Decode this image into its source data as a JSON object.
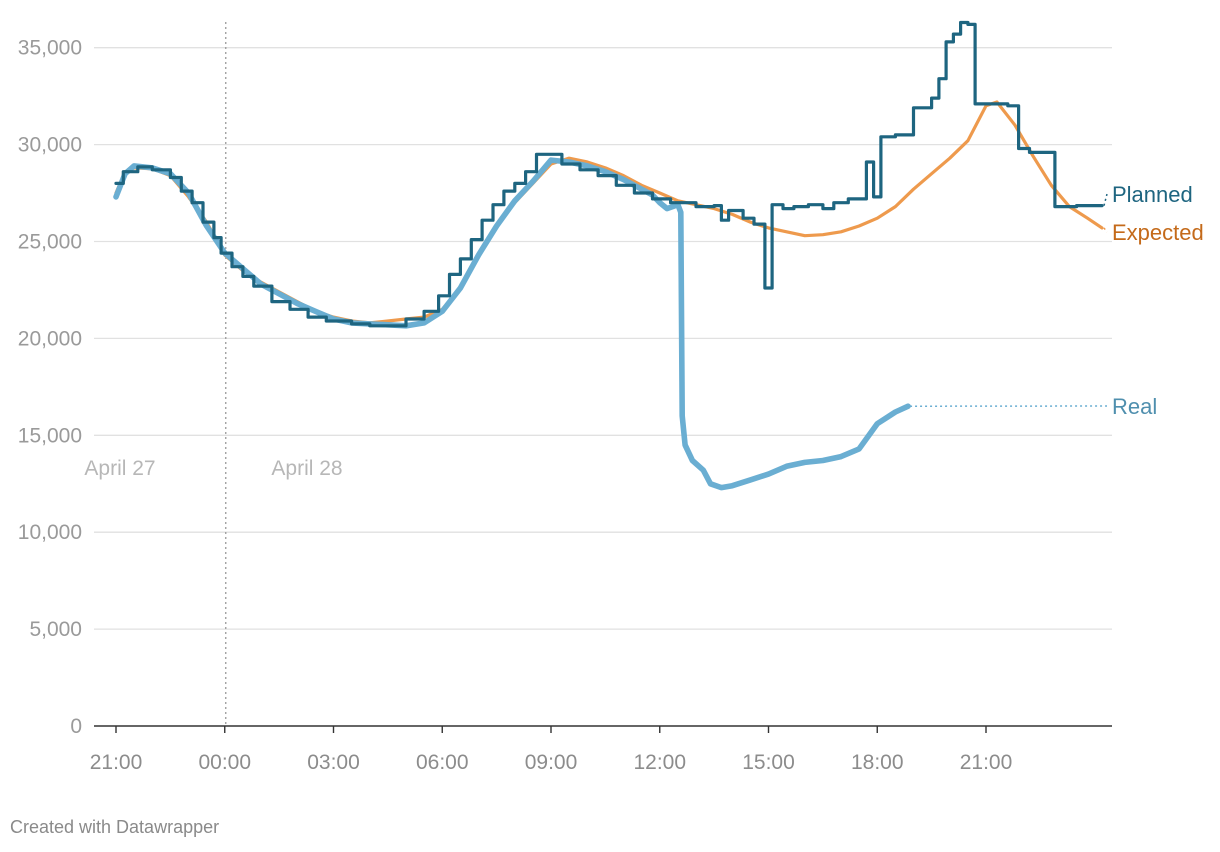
{
  "credit": "Created with Datawrapper",
  "chart_data": {
    "type": "line",
    "title": "",
    "xlabel": "",
    "ylabel": "",
    "x_start": "2025-04-27 21:00",
    "x_range": [
      "2025-04-27 20:45",
      "2025-04-29 01:00"
    ],
    "ylim": [
      0,
      36000
    ],
    "y_ticks": [
      {
        "value": 0,
        "label": "0"
      },
      {
        "value": 5000,
        "label": "5,000"
      },
      {
        "value": 10000,
        "label": "10,000"
      },
      {
        "value": 15000,
        "label": "15,000"
      },
      {
        "value": 20000,
        "label": "20,000"
      },
      {
        "value": 25000,
        "label": "25,000"
      },
      {
        "value": 30000,
        "label": "30,000"
      },
      {
        "value": 35000,
        "label": "35,000"
      }
    ],
    "x_ticks": [
      {
        "hour": 0,
        "label": "21:00"
      },
      {
        "hour": 3,
        "label": "00:00"
      },
      {
        "hour": 6,
        "label": "03:00"
      },
      {
        "hour": 9,
        "label": "06:00"
      },
      {
        "hour": 12,
        "label": "09:00"
      },
      {
        "hour": 15,
        "label": "12:00"
      },
      {
        "hour": 18,
        "label": "15:00"
      },
      {
        "hour": 21,
        "label": "18:00"
      },
      {
        "hour": 24,
        "label": "21:00"
      }
    ],
    "day_labels": [
      {
        "label": "April 27"
      },
      {
        "label": "April 28"
      }
    ],
    "midnight_marker": {
      "hour": 3
    },
    "grid": true,
    "series": [
      {
        "name": "Expected",
        "color": "#ee9a4d",
        "points": [
          [
            0,
            27500
          ],
          [
            0.25,
            28600
          ],
          [
            0.5,
            28800
          ],
          [
            1,
            28750
          ],
          [
            1.5,
            28400
          ],
          [
            2,
            27300
          ],
          [
            2.5,
            26000
          ],
          [
            3,
            24300
          ],
          [
            3.5,
            23500
          ],
          [
            4,
            22900
          ],
          [
            4.5,
            22400
          ],
          [
            5,
            21900
          ],
          [
            5.5,
            21400
          ],
          [
            6,
            21100
          ],
          [
            6.5,
            20900
          ],
          [
            7,
            20800
          ],
          [
            7.5,
            20900
          ],
          [
            8,
            21000
          ],
          [
            8.5,
            21100
          ],
          [
            9,
            21500
          ],
          [
            9.5,
            22600
          ],
          [
            10,
            24200
          ],
          [
            10.5,
            25800
          ],
          [
            11,
            27000
          ],
          [
            11.5,
            28000
          ],
          [
            12,
            29000
          ],
          [
            12.5,
            29300
          ],
          [
            13,
            29100
          ],
          [
            13.5,
            28800
          ],
          [
            14,
            28400
          ],
          [
            14.5,
            27900
          ],
          [
            15,
            27500
          ],
          [
            15.5,
            27100
          ],
          [
            16,
            26900
          ],
          [
            16.5,
            26700
          ],
          [
            17,
            26400
          ],
          [
            17.5,
            26000
          ],
          [
            18,
            25700
          ],
          [
            18.5,
            25500
          ],
          [
            19,
            25300
          ],
          [
            19.5,
            25350
          ],
          [
            20,
            25500
          ],
          [
            20.5,
            25800
          ],
          [
            21,
            26200
          ],
          [
            21.5,
            26800
          ],
          [
            22,
            27700
          ],
          [
            22.5,
            28500
          ],
          [
            23,
            29300
          ],
          [
            23.5,
            30200
          ],
          [
            24,
            32000
          ],
          [
            24.3,
            32200
          ],
          [
            24.8,
            31000
          ],
          [
            25.3,
            29400
          ],
          [
            25.8,
            27900
          ],
          [
            26.3,
            26800
          ],
          [
            26.8,
            26200
          ],
          [
            27.2,
            25700
          ]
        ]
      },
      {
        "name": "Real",
        "color": "#6aaed2",
        "points": [
          [
            0,
            27300
          ],
          [
            0.25,
            28500
          ],
          [
            0.5,
            28900
          ],
          [
            1,
            28800
          ],
          [
            1.5,
            28500
          ],
          [
            2,
            27500
          ],
          [
            2.5,
            25800
          ],
          [
            3,
            24400
          ],
          [
            3.5,
            23600
          ],
          [
            4,
            22800
          ],
          [
            4.5,
            22300
          ],
          [
            5,
            21800
          ],
          [
            5.5,
            21400
          ],
          [
            6,
            21000
          ],
          [
            6.5,
            20800
          ],
          [
            7,
            20750
          ],
          [
            7.5,
            20700
          ],
          [
            8,
            20650
          ],
          [
            8.5,
            20800
          ],
          [
            9,
            21400
          ],
          [
            9.5,
            22600
          ],
          [
            10,
            24300
          ],
          [
            10.5,
            25800
          ],
          [
            11,
            27100
          ],
          [
            11.5,
            28100
          ],
          [
            12,
            29200
          ],
          [
            12.5,
            29100
          ],
          [
            13,
            28900
          ],
          [
            13.5,
            28600
          ],
          [
            14,
            28200
          ],
          [
            14.5,
            27700
          ],
          [
            14.8,
            27400
          ],
          [
            15,
            27000
          ],
          [
            15.2,
            26700
          ],
          [
            15.5,
            26900
          ],
          [
            15.58,
            26500
          ],
          [
            15.62,
            16000
          ],
          [
            15.7,
            14500
          ],
          [
            15.9,
            13700
          ],
          [
            16.2,
            13200
          ],
          [
            16.4,
            12500
          ],
          [
            16.7,
            12300
          ],
          [
            17,
            12400
          ],
          [
            17.5,
            12700
          ],
          [
            18,
            13000
          ],
          [
            18.5,
            13400
          ],
          [
            19,
            13600
          ],
          [
            19.5,
            13700
          ],
          [
            20,
            13900
          ],
          [
            20.5,
            14300
          ],
          [
            21,
            15600
          ],
          [
            21.5,
            16200
          ],
          [
            21.85,
            16500
          ]
        ]
      },
      {
        "name": "Planned",
        "color": "#1e6580",
        "points": [
          [
            0,
            28000
          ],
          [
            0.2,
            28000
          ],
          [
            0.2,
            28600
          ],
          [
            0.6,
            28600
          ],
          [
            0.6,
            28850
          ],
          [
            1,
            28850
          ],
          [
            1,
            28700
          ],
          [
            1.5,
            28700
          ],
          [
            1.5,
            28300
          ],
          [
            1.8,
            28300
          ],
          [
            1.8,
            27600
          ],
          [
            2.1,
            27600
          ],
          [
            2.1,
            27000
          ],
          [
            2.4,
            27000
          ],
          [
            2.4,
            26000
          ],
          [
            2.7,
            26000
          ],
          [
            2.7,
            25200
          ],
          [
            2.9,
            25200
          ],
          [
            2.9,
            24400
          ],
          [
            3.2,
            24400
          ],
          [
            3.2,
            23700
          ],
          [
            3.5,
            23700
          ],
          [
            3.5,
            23200
          ],
          [
            3.8,
            23200
          ],
          [
            3.8,
            22700
          ],
          [
            4.3,
            22700
          ],
          [
            4.3,
            21900
          ],
          [
            4.8,
            21900
          ],
          [
            4.8,
            21500
          ],
          [
            5.3,
            21500
          ],
          [
            5.3,
            21100
          ],
          [
            5.8,
            21100
          ],
          [
            5.8,
            20900
          ],
          [
            6.5,
            20900
          ],
          [
            6.5,
            20750
          ],
          [
            7,
            20750
          ],
          [
            7,
            20650
          ],
          [
            8,
            20650
          ],
          [
            8,
            21000
          ],
          [
            8.5,
            21000
          ],
          [
            8.5,
            21400
          ],
          [
            8.9,
            21400
          ],
          [
            8.9,
            22200
          ],
          [
            9.2,
            22200
          ],
          [
            9.2,
            23300
          ],
          [
            9.5,
            23300
          ],
          [
            9.5,
            24100
          ],
          [
            9.8,
            24100
          ],
          [
            9.8,
            25100
          ],
          [
            10.1,
            25100
          ],
          [
            10.1,
            26100
          ],
          [
            10.4,
            26100
          ],
          [
            10.4,
            26900
          ],
          [
            10.7,
            26900
          ],
          [
            10.7,
            27600
          ],
          [
            11,
            27600
          ],
          [
            11,
            28000
          ],
          [
            11.3,
            28000
          ],
          [
            11.3,
            28600
          ],
          [
            11.6,
            28600
          ],
          [
            11.6,
            29500
          ],
          [
            12.3,
            29500
          ],
          [
            12.3,
            29000
          ],
          [
            12.8,
            29000
          ],
          [
            12.8,
            28700
          ],
          [
            13.3,
            28700
          ],
          [
            13.3,
            28400
          ],
          [
            13.8,
            28400
          ],
          [
            13.8,
            27900
          ],
          [
            14.3,
            27900
          ],
          [
            14.3,
            27500
          ],
          [
            14.8,
            27500
          ],
          [
            14.8,
            27200
          ],
          [
            15.3,
            27200
          ],
          [
            15.3,
            27000
          ],
          [
            16,
            27000
          ],
          [
            16,
            26800
          ],
          [
            16.5,
            26800
          ],
          [
            16.5,
            26850
          ],
          [
            16.7,
            26850
          ],
          [
            16.7,
            26100
          ],
          [
            16.9,
            26100
          ],
          [
            16.9,
            26600
          ],
          [
            17.3,
            26600
          ],
          [
            17.3,
            26200
          ],
          [
            17.6,
            26200
          ],
          [
            17.6,
            25900
          ],
          [
            17.9,
            25900
          ],
          [
            17.9,
            22600
          ],
          [
            18.1,
            22600
          ],
          [
            18.1,
            26900
          ],
          [
            18.4,
            26900
          ],
          [
            18.4,
            26700
          ],
          [
            18.7,
            26700
          ],
          [
            18.7,
            26800
          ],
          [
            19.1,
            26800
          ],
          [
            19.1,
            26900
          ],
          [
            19.5,
            26900
          ],
          [
            19.5,
            26700
          ],
          [
            19.8,
            26700
          ],
          [
            19.8,
            27000
          ],
          [
            20.2,
            27000
          ],
          [
            20.2,
            27200
          ],
          [
            20.7,
            27200
          ],
          [
            20.7,
            29100
          ],
          [
            20.9,
            29100
          ],
          [
            20.9,
            27300
          ],
          [
            21.1,
            27300
          ],
          [
            21.1,
            30400
          ],
          [
            21.5,
            30400
          ],
          [
            21.5,
            30500
          ],
          [
            22,
            30500
          ],
          [
            22,
            31900
          ],
          [
            22.5,
            31900
          ],
          [
            22.5,
            32400
          ],
          [
            22.7,
            32400
          ],
          [
            22.7,
            33400
          ],
          [
            22.9,
            33400
          ],
          [
            22.9,
            35300
          ],
          [
            23.1,
            35300
          ],
          [
            23.1,
            35700
          ],
          [
            23.3,
            35700
          ],
          [
            23.3,
            36300
          ],
          [
            23.5,
            36300
          ],
          [
            23.5,
            36200
          ],
          [
            23.7,
            36200
          ],
          [
            23.7,
            32100
          ],
          [
            24.6,
            32100
          ],
          [
            24.6,
            32000
          ],
          [
            24.9,
            32000
          ],
          [
            24.9,
            29800
          ],
          [
            25.2,
            29800
          ],
          [
            25.2,
            29600
          ],
          [
            25.9,
            29600
          ],
          [
            25.9,
            26800
          ],
          [
            26.5,
            26800
          ],
          [
            26.5,
            26850
          ],
          [
            27.2,
            26850
          ]
        ]
      }
    ],
    "series_labels": [
      {
        "name": "Planned",
        "text": "Planned",
        "value": 27450,
        "color": "#1e6580"
      },
      {
        "name": "Expected",
        "text": "Expected",
        "value": 25500,
        "color": "#c46a1a"
      },
      {
        "name": "Real",
        "text": "Real",
        "value": 16500,
        "color": "#4f8fae"
      }
    ]
  }
}
